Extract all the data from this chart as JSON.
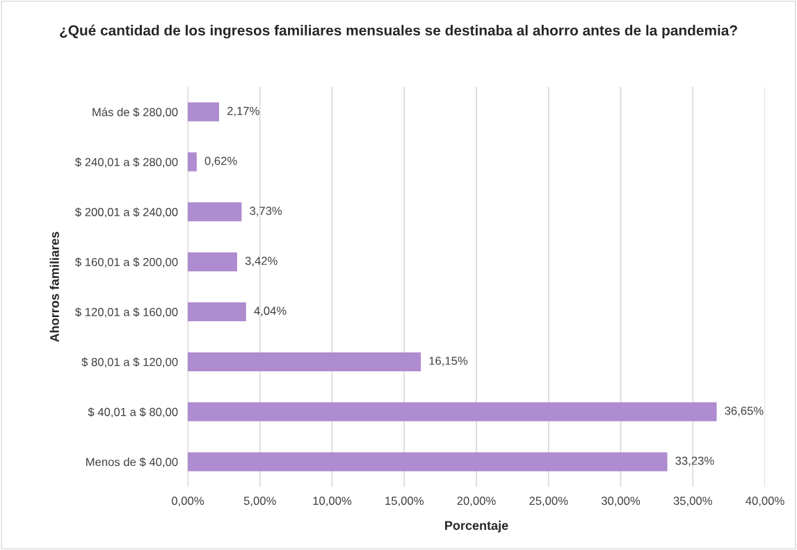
{
  "chart_data": {
    "type": "bar",
    "orientation": "horizontal",
    "title": "¿Qué cantidad de los ingresos familiares mensuales se destinaba al ahorro antes de la pandemia?",
    "xlabel": "Porcentaje",
    "ylabel": "Ahorros familiares",
    "categories": [
      "Más de $ 280,00",
      "$ 240,01 a $ 280,00",
      "$ 200,01 a $ 240,00",
      "$ 160,01 a $ 200,00",
      "$ 120,01 a $ 160,00",
      "$ 80,01 a $ 120,00",
      "$ 40,01 a $ 80,00",
      "Menos de $ 40,00"
    ],
    "values": [
      2.17,
      0.62,
      3.73,
      3.42,
      4.04,
      16.15,
      36.65,
      33.23
    ],
    "value_labels": [
      "2,17%",
      "0,62%",
      "3,73%",
      "3,42%",
      "4,04%",
      "16,15%",
      "36,65%",
      "33,23%"
    ],
    "color": "#ae8ccf",
    "xlim": [
      0,
      40
    ],
    "xticks": [
      {
        "value": 0,
        "label": "0,00%"
      },
      {
        "value": 5,
        "label": "5,00%"
      },
      {
        "value": 10,
        "label": "10,00%"
      },
      {
        "value": 15,
        "label": "15,00%"
      },
      {
        "value": 20,
        "label": "20,00%"
      },
      {
        "value": 25,
        "label": "25,00%"
      },
      {
        "value": 30,
        "label": "30,00%"
      },
      {
        "value": 35,
        "label": "35,00%"
      },
      {
        "value": 40,
        "label": "40,00%"
      }
    ],
    "grid": "x",
    "legend": false
  }
}
